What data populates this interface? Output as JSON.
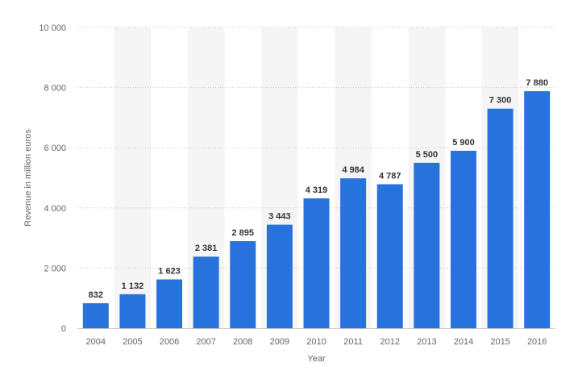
{
  "chart_data": {
    "type": "bar",
    "categories": [
      "2004",
      "2005",
      "2006",
      "2007",
      "2008",
      "2009",
      "2010",
      "2011",
      "2012",
      "2013",
      "2014",
      "2015",
      "2016"
    ],
    "values": [
      832,
      1132,
      1623,
      2381,
      2895,
      3443,
      4319,
      4984,
      4787,
      5500,
      5900,
      7300,
      7880
    ],
    "value_labels": [
      "832",
      "1 132",
      "1 623",
      "2 381",
      "2 895",
      "3 443",
      "4 319",
      "4 984",
      "4 787",
      "5 500",
      "5 900",
      "7 300",
      "7 880"
    ],
    "xlabel": "Year",
    "ylabel": "Revenue in million euros",
    "ylim": [
      0,
      10000
    ],
    "yticks": [
      0,
      2000,
      4000,
      6000,
      8000,
      10000
    ],
    "ytick_labels": [
      "0",
      "2 000",
      "4 000",
      "6 000",
      "8 000",
      "10 000"
    ],
    "grid": true,
    "legend": "none",
    "colors": {
      "bar": "#2872de",
      "band": "#f5f5f5",
      "grid": "#c8c8c8"
    }
  }
}
